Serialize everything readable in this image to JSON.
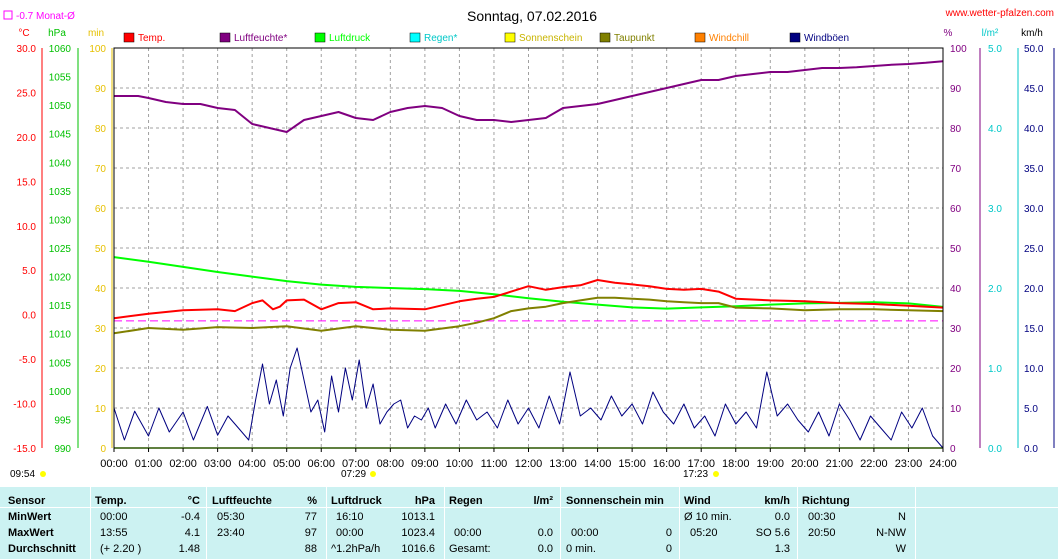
{
  "title": "Sonntag, 07.02.2016",
  "watermark": "www.wetter-pfalzen.com",
  "monthly_note": "-0.7 Monat-Ø",
  "left_units": [
    "°C",
    "hPa",
    "min"
  ],
  "right_units": [
    "%",
    "l/m²",
    "km/h"
  ],
  "time_labels": [
    "00:00",
    "01:00",
    "02:00",
    "03:00",
    "04:00",
    "05:00",
    "06:00",
    "07:00",
    "08:00",
    "09:00",
    "10:00",
    "11:00",
    "12:00",
    "13:00",
    "14:00",
    "15:00",
    "16:00",
    "17:00",
    "18:00",
    "19:00",
    "20:00",
    "21:00",
    "22:00",
    "23:00",
    "24:00"
  ],
  "markers": {
    "start": "09:54",
    "sunrise": "07:29",
    "sunset": "17:23"
  },
  "colors": {
    "temp": "#ff0000",
    "humidity": "#800080",
    "pressure": "#00ff00",
    "rain": "#00ffff",
    "sunshine": "#ffff00",
    "dewpoint": "#808000",
    "windchill": "#ff8000",
    "gust": "#000080",
    "plot_bg": "#ffffff",
    "grid": "#a0a0a0",
    "avg_line": "#ff00ff"
  },
  "chart_data": {
    "type": "line",
    "title": "Sonntag, 07.02.2016",
    "x_range": [
      0,
      24
    ],
    "axes": {
      "temp_c": {
        "range": [
          -15,
          30
        ],
        "ticks": [
          "30.0",
          "25.0",
          "20.0",
          "15.0",
          "10.0",
          "5.0",
          "0.0",
          "-5.0",
          "-10.0",
          "-15.0"
        ]
      },
      "pressure_hpa": {
        "range": [
          990,
          1060
        ],
        "ticks": [
          "1060",
          "1055",
          "1050",
          "1045",
          "1040",
          "1035",
          "1030",
          "1025",
          "1020",
          "1015",
          "1010",
          "1005",
          "1000",
          "995",
          "990"
        ]
      },
      "minutes": {
        "range": [
          0,
          100
        ],
        "ticks": [
          "100",
          "90",
          "80",
          "70",
          "60",
          "50",
          "40",
          "30",
          "20",
          "10",
          "0"
        ]
      },
      "humidity_pct": {
        "range": [
          0,
          100
        ],
        "ticks": [
          "100",
          "90",
          "80",
          "70",
          "60",
          "50",
          "40",
          "30",
          "20",
          "10",
          "0"
        ]
      },
      "rain_lm2": {
        "range": [
          0,
          5
        ],
        "ticks": [
          "5.0",
          "4.0",
          "3.0",
          "2.0",
          "1.0",
          "0.0"
        ]
      },
      "wind_kmh": {
        "range": [
          0,
          50
        ],
        "ticks": [
          "50.0",
          "45.0",
          "40.0",
          "35.0",
          "30.0",
          "25.0",
          "20.0",
          "15.0",
          "10.0",
          "5.0",
          "0.0"
        ]
      }
    },
    "monthly_avg_temp": -0.7,
    "series": [
      {
        "name": "Temp.",
        "key": "temp",
        "axis": "temp_c",
        "x": [
          0,
          1,
          2,
          3,
          3.5,
          4,
          4.3,
          4.6,
          4.8,
          5,
          5.5,
          6,
          6.5,
          7,
          7.5,
          8,
          9,
          10,
          10.5,
          11,
          11.5,
          12,
          12.5,
          13,
          13.5,
          14,
          14.5,
          15,
          15.5,
          16,
          16.5,
          17,
          17.5,
          18,
          19,
          20,
          21,
          22,
          23,
          24
        ],
        "y": [
          -0.4,
          0.1,
          0.5,
          0.6,
          0.4,
          1.3,
          1.6,
          0.6,
          0.9,
          1.6,
          1.7,
          0.6,
          1.3,
          1.4,
          0.6,
          0.7,
          0.6,
          1.5,
          1.8,
          2.0,
          2.6,
          3.2,
          2.8,
          3.1,
          3.3,
          3.9,
          3.6,
          3.4,
          3.2,
          2.9,
          2.8,
          2.9,
          2.6,
          1.8,
          1.6,
          1.5,
          1.3,
          1.2,
          1.0,
          0.8
        ]
      },
      {
        "name": "Luftfeuchte*",
        "key": "humidity",
        "axis": "humidity_pct",
        "x": [
          0,
          0.7,
          1,
          1.5,
          2,
          2.5,
          3,
          3.5,
          4,
          4.5,
          5,
          5.5,
          6,
          6.5,
          7,
          7.5,
          8,
          8.5,
          9,
          9.5,
          10,
          10.5,
          11,
          11.5,
          12,
          12.5,
          13,
          13.5,
          14,
          14.5,
          15,
          15.5,
          16,
          16.5,
          17,
          17.5,
          18,
          18.5,
          19,
          19.5,
          20,
          20.5,
          21,
          21.5,
          22,
          22.5,
          23,
          23.5,
          24
        ],
        "y": [
          88,
          88,
          87.5,
          86.5,
          86,
          86,
          85,
          84.5,
          81,
          80,
          79,
          82,
          83,
          84,
          82.5,
          82,
          84,
          85,
          85.5,
          85,
          83,
          82,
          82,
          81.5,
          82,
          82.5,
          85,
          85.5,
          86,
          87,
          88,
          89,
          90,
          91,
          92,
          92,
          93,
          93.5,
          94,
          94,
          94.5,
          95,
          95,
          95.2,
          95.5,
          95.8,
          96,
          96.3,
          96.7
        ]
      },
      {
        "name": "Luftdruck",
        "key": "pressure",
        "axis": "pressure_hpa",
        "x": [
          0,
          1,
          2,
          3,
          4,
          5,
          6,
          7,
          8,
          9,
          10,
          11,
          12,
          13,
          14,
          15,
          16,
          17,
          18,
          19,
          20,
          21,
          22,
          23,
          24
        ],
        "y": [
          1023.4,
          1022.6,
          1021.7,
          1020.8,
          1020.0,
          1019.2,
          1018.6,
          1018.2,
          1018.0,
          1017.8,
          1017.5,
          1016.9,
          1016.2,
          1015.6,
          1015.1,
          1014.6,
          1014.4,
          1014.6,
          1014.8,
          1015.1,
          1015.3,
          1015.4,
          1015.5,
          1015.3,
          1014.7
        ]
      },
      {
        "name": "Regen*",
        "key": "rain",
        "axis": "rain_lm2",
        "x": [
          0,
          24
        ],
        "y": [
          0,
          0
        ]
      },
      {
        "name": "Sonnenschein",
        "key": "sunshine",
        "axis": "minutes",
        "x": [
          0,
          24
        ],
        "y": [
          0,
          0
        ]
      },
      {
        "name": "Taupunkt",
        "key": "dewpoint",
        "axis": "temp_c",
        "x": [
          0,
          1,
          2,
          3,
          4,
          5,
          6,
          7,
          8,
          9,
          10,
          10.5,
          11,
          11.5,
          12,
          12.5,
          13,
          13.5,
          14,
          14.5,
          15,
          15.5,
          16,
          16.5,
          17,
          17.5,
          18,
          19,
          20,
          21,
          22,
          23,
          24
        ],
        "y": [
          -2.1,
          -1.5,
          -1.7,
          -1.4,
          -1.5,
          -1.3,
          -1.8,
          -1.3,
          -1.7,
          -1.8,
          -1.3,
          -0.9,
          -0.4,
          0.4,
          0.7,
          0.9,
          1.3,
          1.6,
          1.9,
          1.9,
          1.8,
          1.7,
          1.5,
          1.4,
          1.3,
          1.3,
          0.8,
          0.7,
          0.5,
          0.6,
          0.6,
          0.5,
          0.4
        ]
      },
      {
        "name": "Windchill",
        "key": "windchill",
        "axis": "temp_c",
        "x": [
          0,
          24
        ],
        "y": [
          -0.4,
          0.8
        ]
      },
      {
        "name": "Windböen",
        "key": "gust",
        "axis": "wind_kmh",
        "x": [
          0,
          0.3,
          0.6,
          1,
          1.3,
          1.6,
          2,
          2.3,
          2.7,
          3,
          3.3,
          3.6,
          3.9,
          4.1,
          4.3,
          4.5,
          4.7,
          4.9,
          5.1,
          5.3,
          5.5,
          5.7,
          5.9,
          6.1,
          6.3,
          6.5,
          6.7,
          6.9,
          7.1,
          7.3,
          7.5,
          7.7,
          7.9,
          8.1,
          8.3,
          8.5,
          8.7,
          8.9,
          9.1,
          9.3,
          9.6,
          9.9,
          10.2,
          10.5,
          10.8,
          11.1,
          11.4,
          11.7,
          12,
          12.3,
          12.6,
          12.9,
          13.2,
          13.5,
          13.8,
          14.1,
          14.4,
          14.7,
          15,
          15.3,
          15.6,
          15.9,
          16.2,
          16.5,
          16.8,
          17.1,
          17.4,
          17.7,
          18,
          18.3,
          18.6,
          18.9,
          19.2,
          19.5,
          19.8,
          20.1,
          20.4,
          20.7,
          21,
          21.3,
          21.6,
          21.9,
          22.2,
          22.5,
          22.8,
          23.1,
          23.4,
          23.7,
          24
        ],
        "y": [
          5.0,
          1.0,
          4.6,
          1.5,
          5.0,
          2.0,
          4.5,
          1.0,
          5.2,
          1.6,
          4.0,
          2.5,
          1.0,
          6.0,
          10.5,
          5.5,
          8.5,
          4.0,
          10.0,
          12.5,
          8.5,
          4.5,
          6.0,
          2.0,
          9.0,
          4.5,
          10.0,
          6.0,
          11.0,
          5.0,
          8.0,
          3.0,
          4.5,
          5.5,
          6.0,
          2.5,
          4.0,
          3.5,
          5.0,
          2.5,
          5.5,
          3.0,
          6.0,
          3.5,
          4.5,
          2.5,
          6.0,
          3.0,
          5.0,
          2.5,
          6.5,
          3.0,
          9.5,
          4.0,
          5.0,
          3.5,
          6.5,
          4.0,
          5.5,
          3.0,
          7.0,
          4.5,
          3.0,
          5.5,
          2.5,
          4.0,
          1.5,
          5.5,
          3.0,
          4.5,
          2.5,
          9.5,
          4.0,
          5.5,
          3.5,
          2.0,
          4.5,
          1.5,
          5.5,
          3.5,
          1.0,
          4.0,
          2.5,
          1.0,
          4.5,
          2.5,
          5.0,
          1.5,
          0.0
        ]
      }
    ]
  },
  "legend": [
    {
      "label": "Temp.",
      "key": "temp"
    },
    {
      "label": "Luftfeuchte*",
      "key": "humidity"
    },
    {
      "label": "Luftdruck",
      "key": "pressure"
    },
    {
      "label": "Regen*",
      "key": "rain"
    },
    {
      "label": "Sonnenschein",
      "key": "sunshine"
    },
    {
      "label": "Taupunkt",
      "key": "dewpoint"
    },
    {
      "label": "Windchill",
      "key": "windchill"
    },
    {
      "label": "Windböen",
      "key": "gust"
    }
  ],
  "stats": {
    "row_labels": [
      "Sensor",
      "MinWert",
      "MaxWert",
      "Durchschnitt"
    ],
    "temp": {
      "h1": "Temp.",
      "h2": "°C",
      "min_t": "00:00",
      "min_v": "-0.4",
      "max_t": "13:55",
      "max_v": "4.1",
      "avg_t": "(+ 2.20 )",
      "avg_v": "1.48"
    },
    "hum": {
      "h1": "Luftfeuchte",
      "h2": "%",
      "min_t": "05:30",
      "min_v": "77",
      "max_t": "23:40",
      "max_v": "97",
      "avg_t": "",
      "avg_v": "88"
    },
    "press": {
      "h1": "Luftdruck",
      "h2": "hPa",
      "min_t": "16:10",
      "min_v": "1013.1",
      "max_t": "00:00",
      "max_v": "1023.4",
      "avg_t": "^1.2hPa/h",
      "avg_v": "1016.6"
    },
    "rain": {
      "h1": "Regen",
      "h2": "l/m²",
      "min_t": "",
      "min_v": "",
      "max_t": "00:00",
      "max_v": "0.0",
      "avg_t": "Gesamt:",
      "avg_v": "0.0"
    },
    "sun": {
      "h1": "Sonnenschein min",
      "min_t": "",
      "min_v": "",
      "max_t": "00:00",
      "max_v": "0",
      "avg_t": "0 min.",
      "avg_v": "0"
    },
    "wind": {
      "h1": "Wind",
      "h2": "km/h",
      "min_t": "Ø 10 min.",
      "min_v": "0.0",
      "max_t": "05:20",
      "max_v": "SO 5.6",
      "avg_t": "",
      "avg_v": "1.3"
    },
    "dir": {
      "h1": "Richtung",
      "min_t": "00:30",
      "min_v": "N",
      "max_t": "20:50",
      "max_v": "N-NW",
      "avg_t": "",
      "avg_v": "W"
    }
  }
}
